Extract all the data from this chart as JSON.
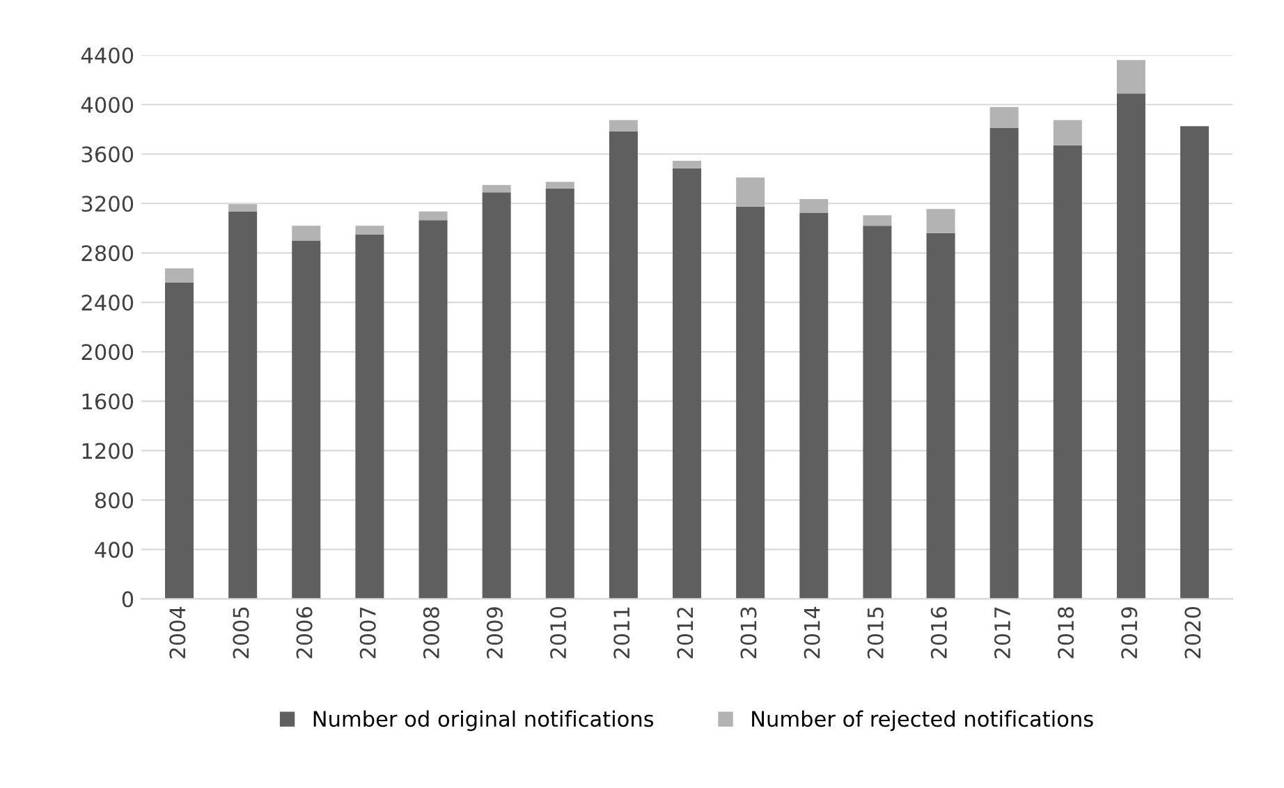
{
  "chart_data": {
    "type": "bar",
    "stacked": true,
    "categories": [
      "2004",
      "2005",
      "2006",
      "2007",
      "2008",
      "2009",
      "2010",
      "2011",
      "2012",
      "2013",
      "2014",
      "2015",
      "2016",
      "2017",
      "2018",
      "2019",
      "2020"
    ],
    "series": [
      {
        "name": "Number od original notifications",
        "color": "#5f5f5f",
        "values": [
          2560,
          3135,
          2900,
          2950,
          3065,
          3290,
          3320,
          3785,
          3485,
          3175,
          3125,
          3020,
          2960,
          3810,
          3670,
          4090,
          3825
        ]
      },
      {
        "name": "Number of rejected notifications",
        "color": "#b3b3b3",
        "values": [
          115,
          60,
          120,
          70,
          70,
          60,
          55,
          90,
          60,
          235,
          110,
          85,
          195,
          170,
          205,
          270,
          null
        ]
      }
    ],
    "ylim": [
      0,
      4400
    ],
    "yticks": [
      0,
      400,
      800,
      1200,
      1600,
      2000,
      2400,
      2800,
      3200,
      3600,
      4000,
      4400
    ],
    "grid": "y",
    "legend": "bottom"
  }
}
